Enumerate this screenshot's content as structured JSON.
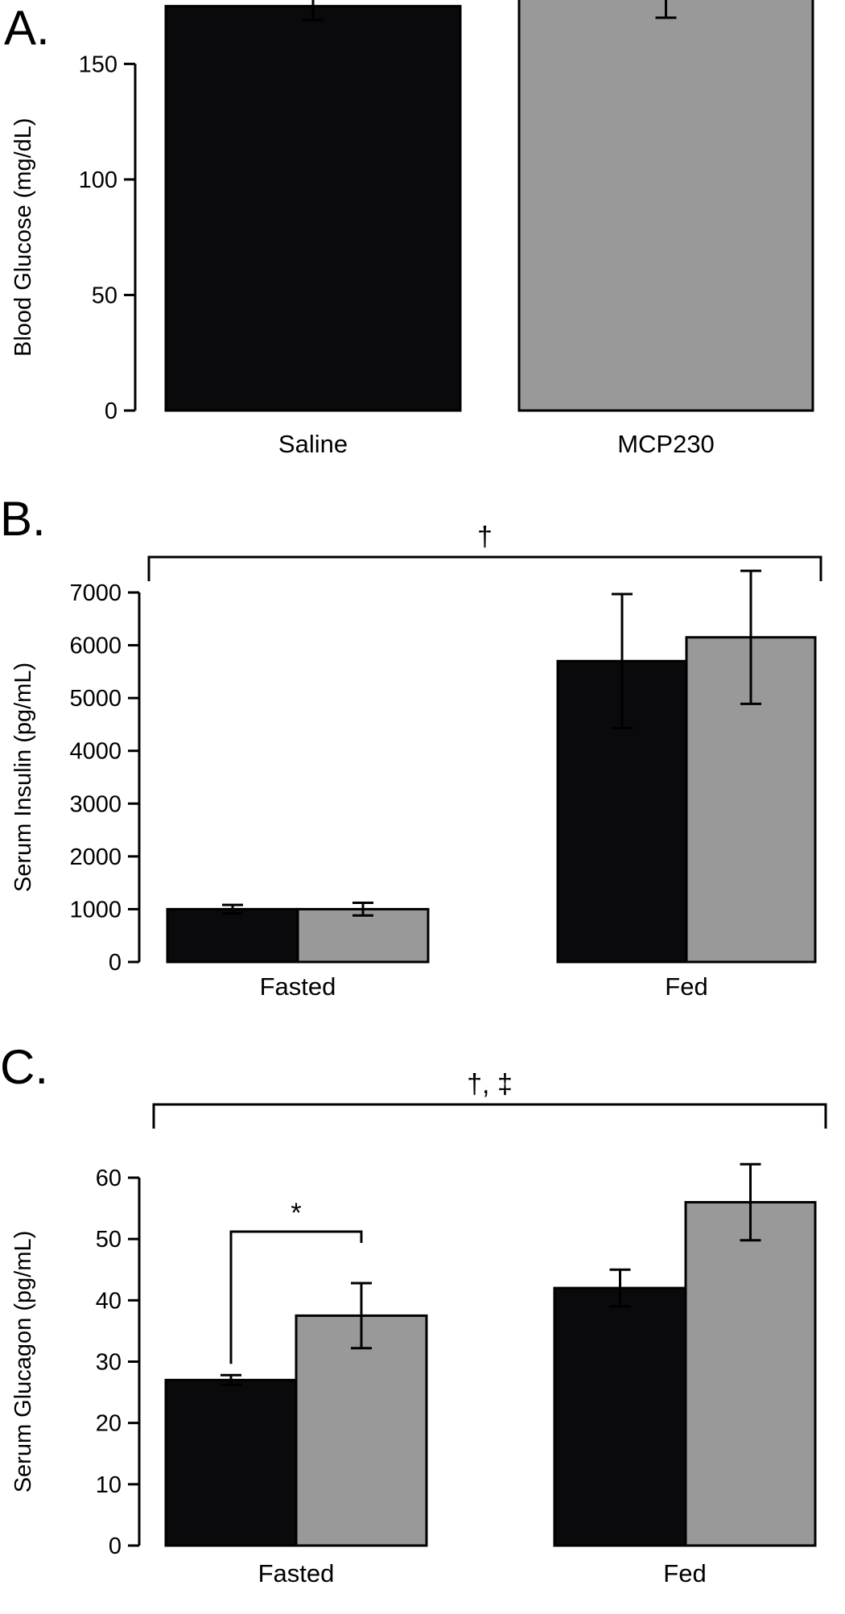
{
  "colors": {
    "saline": "#0a0a0c",
    "mcp230": "#999999"
  },
  "chart_data": [
    {
      "type": "bar",
      "panel": "A.",
      "ylabel": "Blood Glucose (mg/dL)",
      "ylim": [
        0,
        180
      ],
      "yticks": [
        0,
        50,
        100,
        150
      ],
      "categories": [
        "Saline",
        "MCP230"
      ],
      "series": [
        {
          "values": [
            175,
            182
          ],
          "errors": [
            6,
            12
          ]
        }
      ],
      "annotations": []
    },
    {
      "type": "bar",
      "panel": "B.",
      "ylabel": "Serum Insulin (pg/mL)",
      "ylim": [
        0,
        7000
      ],
      "yticks": [
        0,
        1000,
        2000,
        3000,
        4000,
        5000,
        6000,
        7000
      ],
      "categories": [
        "Fasted",
        "Fed"
      ],
      "series": [
        {
          "values": [
            1000,
            5700
          ],
          "errors": [
            80,
            1270
          ]
        },
        {
          "values": [
            1000,
            6150
          ],
          "errors": [
            120,
            1260
          ]
        }
      ],
      "annotations": [
        {
          "text": "†",
          "spans": "all"
        }
      ]
    },
    {
      "type": "bar",
      "panel": "C.",
      "ylabel": "Serum Glucagon (pg/mL)",
      "ylim": [
        0,
        60
      ],
      "yticks": [
        0,
        10,
        20,
        30,
        40,
        50,
        60
      ],
      "categories": [
        "Fasted",
        "Fed"
      ],
      "series": [
        {
          "values": [
            27,
            42
          ],
          "errors": [
            0.8,
            3
          ]
        },
        {
          "values": [
            37.5,
            56
          ],
          "errors": [
            5.3,
            6.2
          ]
        }
      ],
      "annotations": [
        {
          "text": "†, ‡",
          "spans": "all"
        },
        {
          "text": "*",
          "spans": "Fasted"
        }
      ]
    }
  ]
}
